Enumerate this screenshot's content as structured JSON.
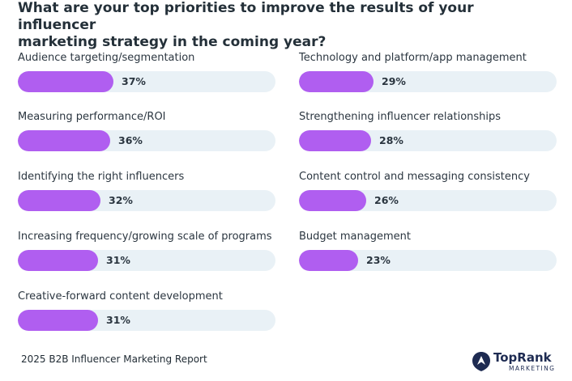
{
  "chart_data": {
    "type": "bar",
    "title": "What are your top priorities to improve the results of your influencer marketing strategy in the coming year?",
    "title_lines": [
      "What are your top priorities to improve the results of your influencer",
      "marketing strategy in the coming year?"
    ],
    "orientation": "horizontal",
    "value_unit": "%",
    "xlim": [
      0,
      100
    ],
    "colors": {
      "bar": "#b05ef0",
      "track": "#e9f1f6"
    },
    "columns": [
      [
        {
          "label": "Audience targeting/segmentation",
          "value": 37,
          "value_label": "37%"
        },
        {
          "label": "Measuring performance/ROI",
          "value": 36,
          "value_label": "36%"
        },
        {
          "label": "Identifying the right influencers",
          "value": 32,
          "value_label": "32%"
        },
        {
          "label": "Increasing frequency/growing scale of programs",
          "value": 31,
          "value_label": "31%"
        },
        {
          "label": "Creative-forward content development",
          "value": 31,
          "value_label": "31%"
        }
      ],
      [
        {
          "label": "Technology and platform/app management",
          "value": 29,
          "value_label": "29%"
        },
        {
          "label": "Strengthening influencer relationships",
          "value": 28,
          "value_label": "28%"
        },
        {
          "label": "Content control and messaging consistency",
          "value": 26,
          "value_label": "26%"
        },
        {
          "label": "Budget management",
          "value": 23,
          "value_label": "23%"
        }
      ]
    ]
  },
  "footer": {
    "source": "2025 B2B Influencer Marketing Report"
  },
  "logo": {
    "name": "TopRank",
    "tagline": "MARKETING",
    "color": "#1e2b52"
  }
}
